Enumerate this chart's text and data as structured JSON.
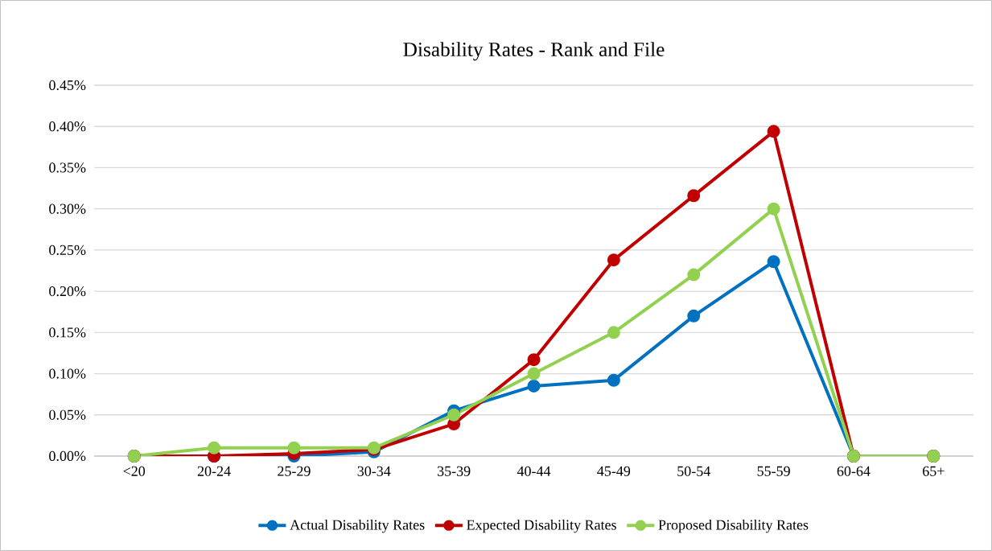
{
  "chart_data": {
    "type": "line",
    "title": "Disability Rates - Rank and File",
    "categories": [
      "<20",
      "20-24",
      "25-29",
      "30-34",
      "35-39",
      "40-44",
      "45-49",
      "50-54",
      "55-59",
      "60-64",
      "65+"
    ],
    "series": [
      {
        "name": "Actual Disability Rates",
        "color": "#0070c0",
        "values": [
          0,
          0,
          0,
          0.005,
          0.055,
          0.085,
          0.092,
          0.17,
          0.236,
          0,
          0
        ]
      },
      {
        "name": "Expected Disability Rates",
        "color": "#c00000",
        "values": [
          0,
          0,
          0.003,
          0.008,
          0.039,
          0.117,
          0.238,
          0.316,
          0.394,
          0,
          0
        ]
      },
      {
        "name": "Proposed Disability Rates",
        "color": "#92d050",
        "values": [
          0,
          0.01,
          0.01,
          0.01,
          0.05,
          0.1,
          0.15,
          0.22,
          0.3,
          0,
          0
        ]
      }
    ],
    "ylim": [
      0,
      0.45
    ],
    "yticks": [
      {
        "value": 0,
        "label": "0.00%"
      },
      {
        "value": 0.05,
        "label": "0.05%"
      },
      {
        "value": 0.1,
        "label": "0.10%"
      },
      {
        "value": 0.15,
        "label": "0.15%"
      },
      {
        "value": 0.2,
        "label": "0.20%"
      },
      {
        "value": 0.25,
        "label": "0.25%"
      },
      {
        "value": 0.3,
        "label": "0.30%"
      },
      {
        "value": 0.35,
        "label": "0.35%"
      },
      {
        "value": 0.4,
        "label": "0.40%"
      },
      {
        "value": 0.45,
        "label": "0.45%"
      }
    ],
    "grid": "y",
    "legend": "bottom",
    "marker": "circle",
    "line_style": "solid"
  }
}
